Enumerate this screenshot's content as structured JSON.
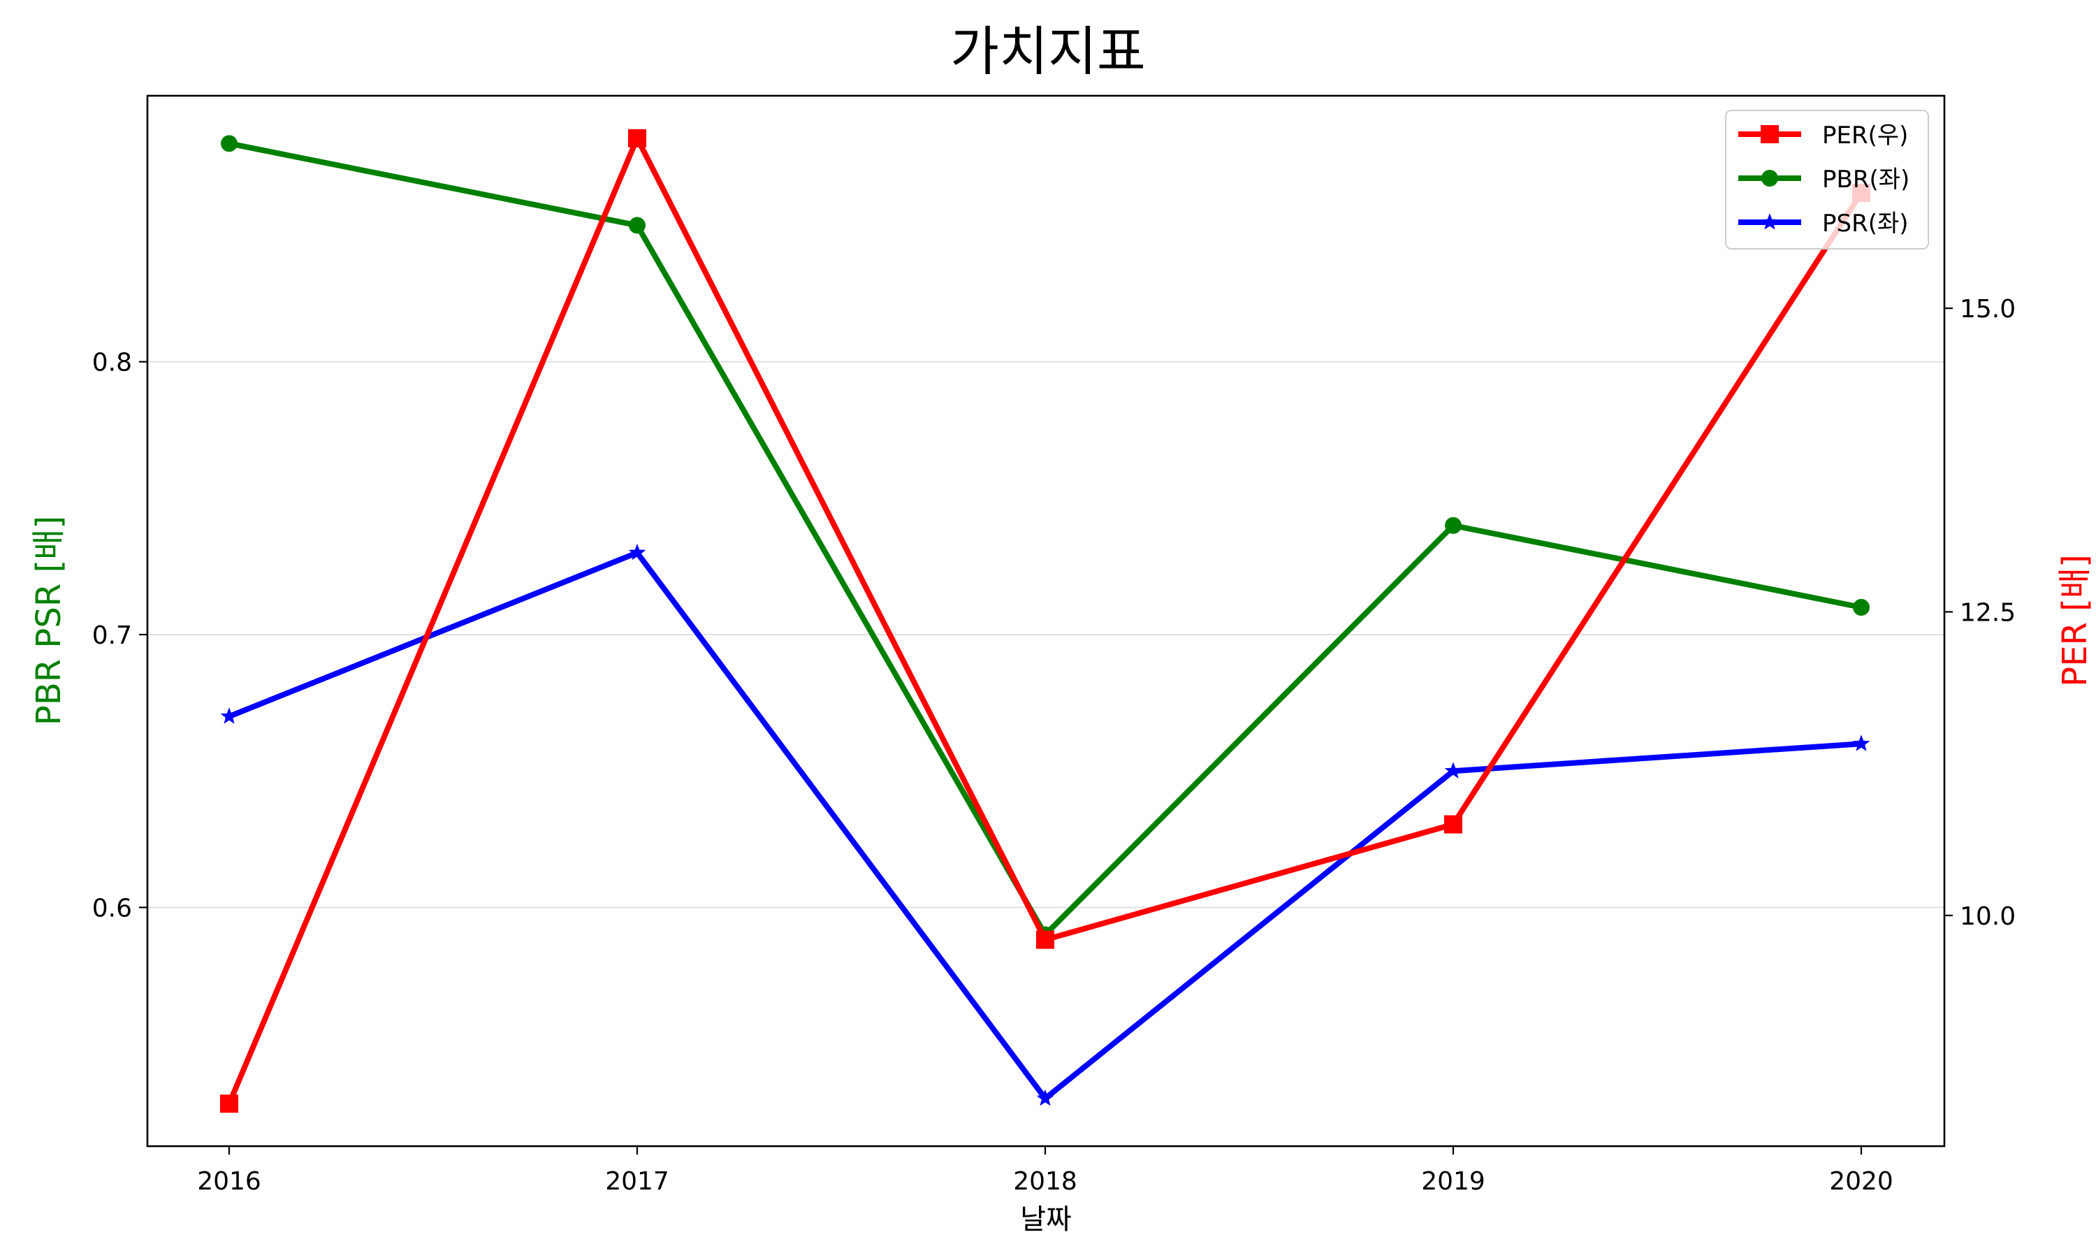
{
  "chart_data": {
    "type": "line",
    "title": "가치지표",
    "xlabel": "날짜",
    "ylabel_left": "PBR PSR [배]",
    "ylabel_right": "PER [배]",
    "x": [
      "2016",
      "2017",
      "2018",
      "2019",
      "2020"
    ],
    "ylim_left": [
      0.5125,
      0.8975
    ],
    "ylim_right": [
      8.1,
      16.75
    ],
    "yticks_left": [
      "0.6",
      "0.7",
      "0.8"
    ],
    "yticks_right": [
      "10.0",
      "12.5",
      "15.0"
    ],
    "grid": "left-axis horizontal",
    "legend_position": "top-right",
    "series": [
      {
        "name": "PER(우)",
        "axis": "right",
        "color": "#ff0000",
        "marker": "square",
        "values": [
          8.45,
          16.4,
          9.8,
          10.75,
          15.95
        ]
      },
      {
        "name": "PBR(좌)",
        "axis": "left",
        "color": "#008000",
        "marker": "circle",
        "values": [
          0.88,
          0.85,
          0.59,
          0.74,
          0.71
        ]
      },
      {
        "name": "PSR(좌)",
        "axis": "left",
        "color": "#0000ff",
        "marker": "star",
        "values": [
          0.67,
          0.73,
          0.53,
          0.65,
          0.66
        ]
      }
    ]
  }
}
